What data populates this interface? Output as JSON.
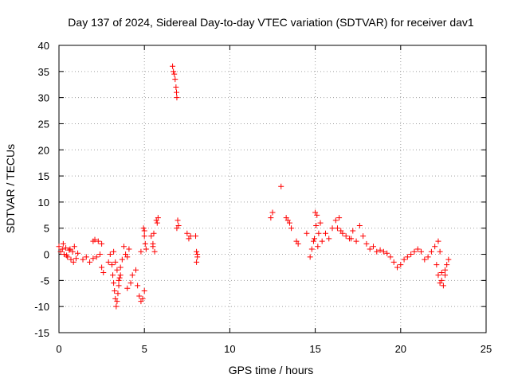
{
  "chart_data": {
    "type": "scatter",
    "title": "Day 137 of 2024, Sidereal Day-to-day VTEC variation (SDTVAR) for receiver dav1",
    "xlabel": "GPS time / hours",
    "ylabel": "SDTVAR / TECUs",
    "xlim": [
      0,
      25
    ],
    "ylim": [
      -15,
      40
    ],
    "xticks": [
      0,
      5,
      10,
      15,
      20,
      25
    ],
    "yticks": [
      -15,
      -10,
      -5,
      0,
      5,
      10,
      15,
      20,
      25,
      30,
      35,
      40
    ],
    "grid": true,
    "marker": "+",
    "marker_color": "#ff0000",
    "series": [
      {
        "name": "dav1",
        "x": [
          0.0,
          0.1,
          0.2,
          0.3,
          0.4,
          0.5,
          0.6,
          0.7,
          0.8,
          0.9,
          1.0,
          1.1,
          0.25,
          0.45,
          0.65,
          0.85,
          1.4,
          1.6,
          1.8,
          2.0,
          2.2,
          2.4,
          2.0,
          2.1,
          2.3,
          2.5,
          2.5,
          2.6,
          2.9,
          3.0,
          3.1,
          3.15,
          3.2,
          3.25,
          3.3,
          3.35,
          3.4,
          3.45,
          3.5,
          3.55,
          3.6,
          3.7,
          3.8,
          3.9,
          4.0,
          4.1,
          3.2,
          3.3,
          3.4,
          3.5,
          3.6,
          4.0,
          4.2,
          4.3,
          4.5,
          4.6,
          4.7,
          4.8,
          4.9,
          5.0,
          4.8,
          5.0,
          4.95,
          5.0,
          5.05,
          5.1,
          5.4,
          5.5,
          5.6,
          5.5,
          5.55,
          5.7,
          5.8,
          5.75,
          6.65,
          6.7,
          6.75,
          6.8,
          6.85,
          6.9,
          6.88,
          6.95,
          7.0,
          6.9,
          7.5,
          7.6,
          7.7,
          8.0,
          8.05,
          8.1,
          8.05,
          8.1,
          12.4,
          12.5,
          13.0,
          13.3,
          13.4,
          13.5,
          13.6,
          13.9,
          14.0,
          14.5,
          14.7,
          14.8,
          14.9,
          15.0,
          15.1,
          15.2,
          15.3,
          14.95,
          15.05,
          15.15,
          15.4,
          15.6,
          15.8,
          16.0,
          16.2,
          16.4,
          16.6,
          16.8,
          17.0,
          17.2,
          17.4,
          17.6,
          17.8,
          18.0,
          16.3,
          16.5,
          17.1,
          18.2,
          18.4,
          18.6,
          18.8,
          19.0,
          19.2,
          19.4,
          19.6,
          19.8,
          20.0,
          20.2,
          20.4,
          20.6,
          20.8,
          21.0,
          21.2,
          21.4,
          21.6,
          21.8,
          22.0,
          22.1,
          22.2,
          22.3,
          22.4,
          22.5,
          22.6,
          22.7,
          22.8,
          22.2,
          22.4,
          22.6,
          22.3
        ],
        "y": [
          1.5,
          0.5,
          1.0,
          0.0,
          1.2,
          -0.5,
          0.8,
          -1.0,
          0.5,
          1.5,
          -0.8,
          0.2,
          2.0,
          -0.2,
          1.0,
          -1.5,
          -1.0,
          -0.5,
          -1.5,
          -0.8,
          -0.5,
          0.0,
          2.5,
          2.8,
          2.5,
          2.0,
          -2.5,
          -3.5,
          -1.5,
          0.0,
          -2.0,
          -4.0,
          -5.5,
          -7.0,
          -8.5,
          -10.0,
          -9.0,
          -7.5,
          -6.0,
          -4.5,
          -2.5,
          -1.0,
          1.5,
          0.0,
          -0.5,
          1.0,
          0.5,
          -1.5,
          -3.0,
          -5.0,
          -4.0,
          -6.5,
          -5.5,
          -4.0,
          -3.0,
          -6.0,
          -8.0,
          -9.0,
          -8.5,
          -7.0,
          0.5,
          4.5,
          5.0,
          3.5,
          2.0,
          1.0,
          3.5,
          2.0,
          0.5,
          1.5,
          4.0,
          6.5,
          7.0,
          6.0,
          36.0,
          35.0,
          34.5,
          33.5,
          32.0,
          30.0,
          31.0,
          6.5,
          5.5,
          5.0,
          4.0,
          3.0,
          3.5,
          3.5,
          0.5,
          -0.5,
          -1.5,
          0.0,
          7.0,
          8.0,
          13.0,
          7.0,
          6.5,
          6.0,
          5.0,
          2.5,
          2.0,
          4.0,
          -0.5,
          1.0,
          2.5,
          8.0,
          7.5,
          4.0,
          6.0,
          3.0,
          5.5,
          1.5,
          2.5,
          4.0,
          3.0,
          5.0,
          6.5,
          7.0,
          4.0,
          3.5,
          3.0,
          4.5,
          2.5,
          5.5,
          3.5,
          2.0,
          5.0,
          4.5,
          3.0,
          1.0,
          1.5,
          0.5,
          0.8,
          0.5,
          0.2,
          -0.5,
          -1.5,
          -2.5,
          -2.0,
          -1.0,
          -0.5,
          0.0,
          0.5,
          1.0,
          0.5,
          -1.0,
          -0.5,
          0.5,
          1.5,
          -2.0,
          -4.0,
          -5.5,
          -3.5,
          -6.0,
          -4.0,
          -2.0,
          -1.0,
          2.5,
          -5.0,
          -3.0,
          0.5
        ]
      }
    ]
  }
}
